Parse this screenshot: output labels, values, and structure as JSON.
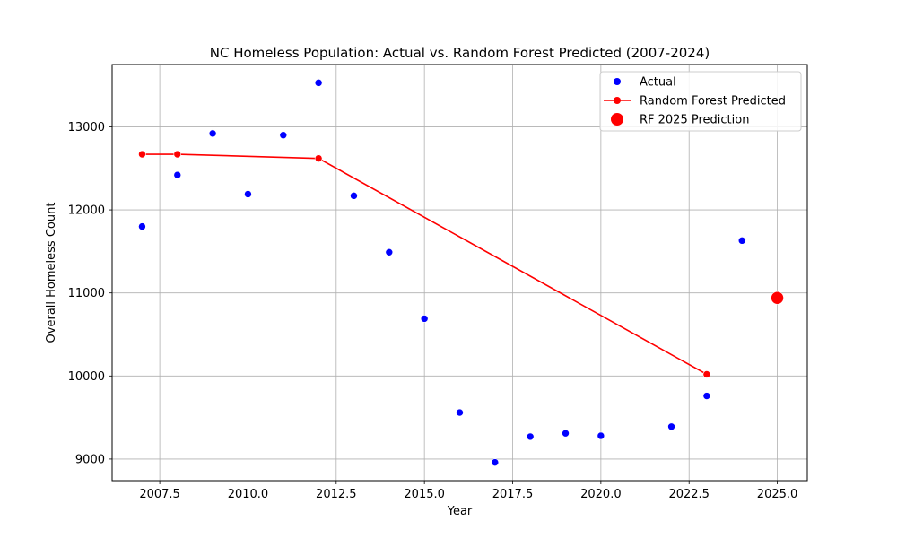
{
  "chart_data": {
    "type": "scatter",
    "title": "NC Homeless Population: Actual vs. Random Forest Predicted (2007-2024)",
    "xlabel": "Year",
    "ylabel": "Overall Homeless Count",
    "xlim": [
      2006.15,
      2025.85
    ],
    "ylim": [
      8740,
      13750
    ],
    "x_ticks": [
      2007.5,
      2010.0,
      2012.5,
      2015.0,
      2017.5,
      2020.0,
      2022.5,
      2025.0
    ],
    "x_tick_labels": [
      "2007.5",
      "2010.0",
      "2012.5",
      "2015.0",
      "2017.5",
      "2020.0",
      "2022.5",
      "2025.0"
    ],
    "y_ticks": [
      9000,
      10000,
      11000,
      12000,
      13000
    ],
    "y_tick_labels": [
      "9000",
      "10000",
      "11000",
      "12000",
      "13000"
    ],
    "grid": true,
    "legend_position": "top-right",
    "series": [
      {
        "name": "Actual",
        "kind": "scatter",
        "color": "#0000ff",
        "x": [
          2007,
          2008,
          2009,
          2010,
          2011,
          2012,
          2013,
          2014,
          2015,
          2016,
          2017,
          2018,
          2019,
          2020,
          2022,
          2023,
          2024
        ],
        "y": [
          11800,
          12420,
          12920,
          12190,
          12900,
          13530,
          12170,
          11490,
          10690,
          9560,
          8960,
          9270,
          9310,
          9280,
          9390,
          9760,
          11630
        ]
      },
      {
        "name": "Random Forest Predicted",
        "kind": "line-markers",
        "color": "#ff0000",
        "x": [
          2007,
          2008,
          2012,
          2023
        ],
        "y": [
          12670,
          12670,
          12620,
          10020
        ]
      },
      {
        "name": "RF 2025 Prediction",
        "kind": "scatter-large",
        "color": "#ff0000",
        "x": [
          2025
        ],
        "y": [
          10940
        ]
      }
    ]
  }
}
